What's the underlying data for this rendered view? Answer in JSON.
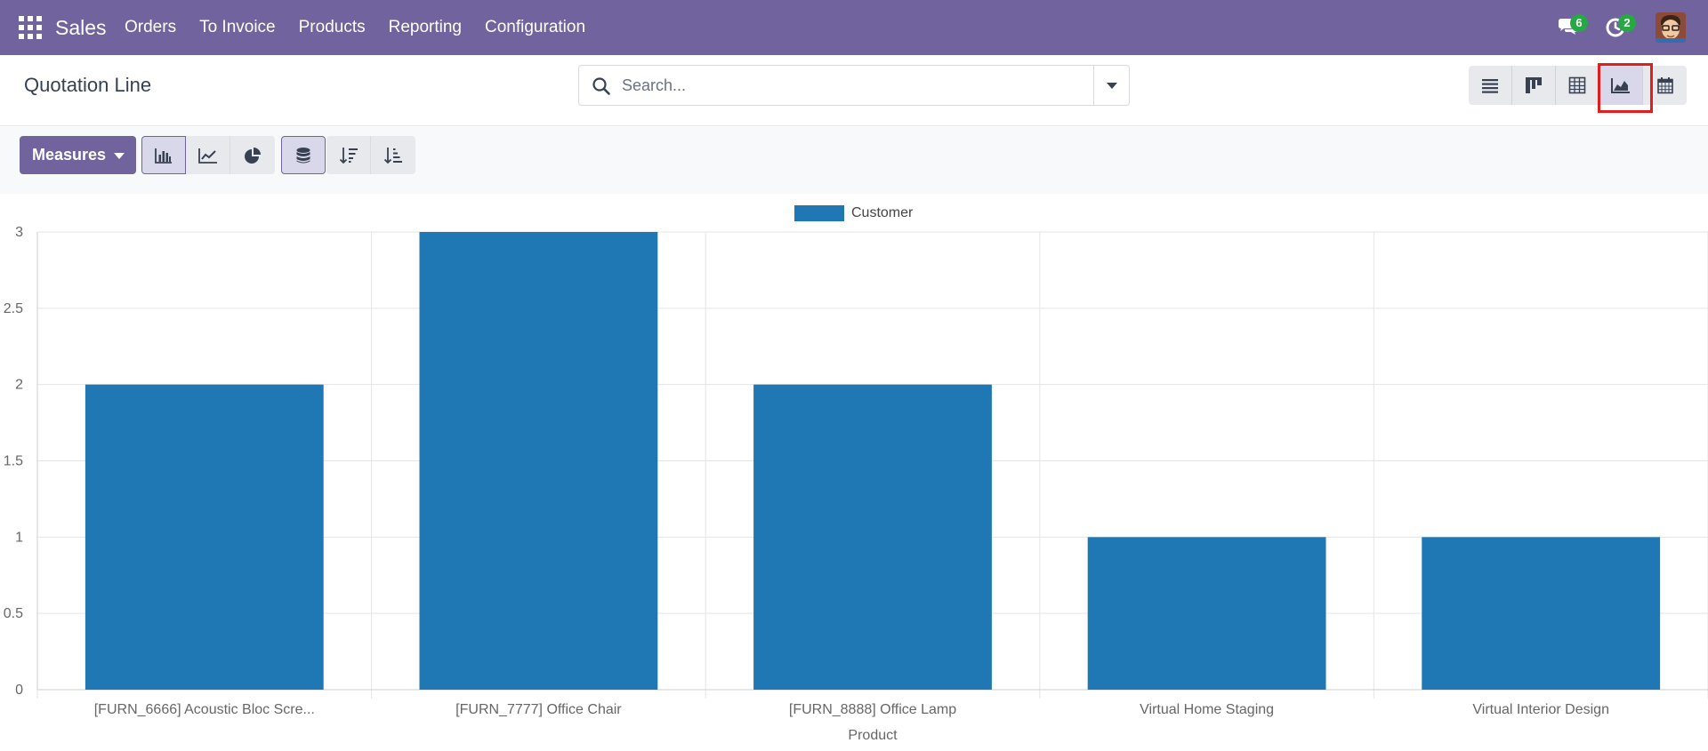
{
  "navbar": {
    "brand": "Sales",
    "menu": [
      "Orders",
      "To Invoice",
      "Products",
      "Reporting",
      "Configuration"
    ],
    "messages_count": "6",
    "activities_count": "2"
  },
  "control_panel": {
    "title": "Quotation Line",
    "search_placeholder": "Search..."
  },
  "toolbar": {
    "measures_label": "Measures"
  },
  "icons": {
    "apps": "apps-grid-icon",
    "messages": "chat-icon",
    "activities": "clock-icon",
    "search": "search-icon",
    "views": [
      "list-view-icon",
      "kanban-view-icon",
      "pivot-view-icon",
      "graph-view-icon",
      "calendar-view-icon"
    ],
    "chart_modes": [
      "bar-chart-icon",
      "line-chart-icon",
      "pie-chart-icon"
    ],
    "stacked": "stacked-database-icon",
    "sorts": [
      "sort-descending-icon",
      "sort-ascending-icon"
    ]
  },
  "colors": {
    "brand": "#71639e",
    "bar": "#1f77b4",
    "badge": "#28a745",
    "highlight": "#e11d1d"
  },
  "chart_data": {
    "type": "bar",
    "categories": [
      "[FURN_6666] Acoustic Bloc Scre...",
      "[FURN_7777] Office Chair",
      "[FURN_8888] Office Lamp",
      "Virtual Home Staging",
      "Virtual Interior Design"
    ],
    "series": [
      {
        "name": "Customer",
        "values": [
          2,
          3,
          2,
          1,
          1
        ]
      }
    ],
    "xlabel": "Product",
    "ylabel": "",
    "ylim": [
      0,
      3
    ],
    "yticks": [
      "0",
      "0.5",
      "1",
      "1.5",
      "2",
      "2.5",
      "3"
    ],
    "grid": true,
    "legend": "top-center"
  }
}
